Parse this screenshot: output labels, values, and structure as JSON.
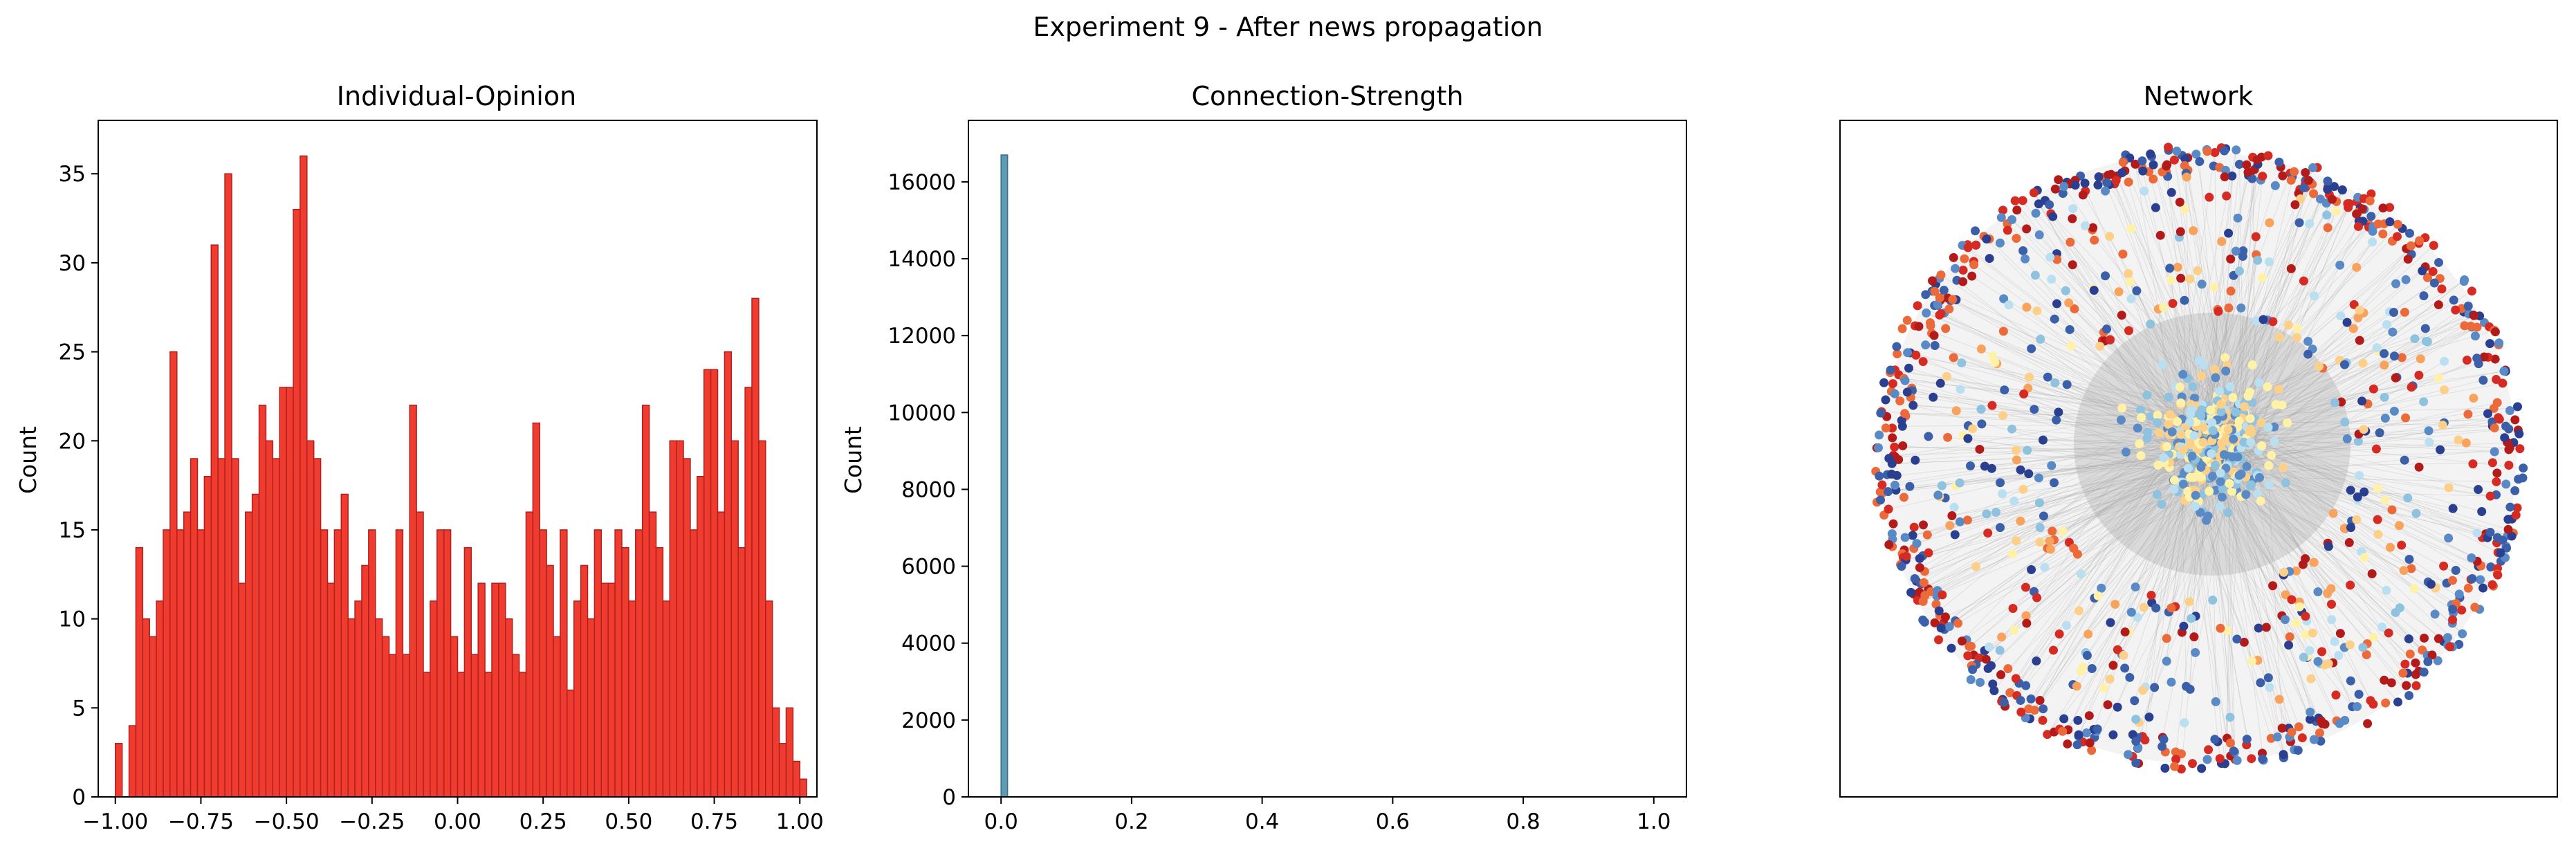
{
  "figure": {
    "suptitle": "Experiment 9 - After news propagation"
  },
  "chart_data": [
    {
      "type": "bar",
      "title": "Individual-Opinion",
      "xlabel": "",
      "ylabel": "Count",
      "xlim": [
        -1.05,
        1.05
      ],
      "ylim": [
        0,
        38
      ],
      "xticks": [
        -1.0,
        -0.75,
        -0.5,
        -0.25,
        0.0,
        0.25,
        0.5,
        0.75,
        1.0
      ],
      "xtick_labels": [
        "−1.00",
        "−0.75",
        "−0.50",
        "−0.25",
        "0.00",
        "0.25",
        "0.50",
        "0.75",
        "1.00"
      ],
      "yticks": [
        0,
        5,
        10,
        15,
        20,
        25,
        30,
        35
      ],
      "ytick_labels": [
        "0",
        "5",
        "10",
        "15",
        "20",
        "25",
        "30",
        "35"
      ],
      "bin_start": -1.0,
      "bin_width": 0.02,
      "values": [
        3,
        0,
        4,
        14,
        10,
        9,
        11,
        15,
        25,
        15,
        16,
        19,
        15,
        18,
        31,
        19,
        35,
        19,
        12,
        16,
        17,
        22,
        20,
        19,
        23,
        23,
        33,
        36,
        20,
        19,
        15,
        12,
        15,
        17,
        10,
        11,
        13,
        15,
        10,
        9,
        8,
        15,
        8,
        22,
        16,
        7,
        11,
        15,
        15,
        9,
        7,
        14,
        8,
        12,
        7,
        12,
        12,
        10,
        8,
        7,
        16,
        21,
        15,
        13,
        9,
        15,
        6,
        11,
        13,
        10,
        15,
        12,
        12,
        15,
        14,
        11,
        15,
        22,
        16,
        14,
        11,
        20,
        20,
        19,
        15,
        18,
        24,
        24,
        16,
        25,
        20,
        14,
        23,
        28,
        20,
        11,
        5,
        3,
        5,
        2,
        1
      ],
      "bar_color": "#f03c2f",
      "edge_color": "#b02020"
    },
    {
      "type": "bar",
      "title": "Connection-Strength",
      "xlabel": "",
      "ylabel": "Count",
      "xlim": [
        -0.05,
        1.05
      ],
      "ylim": [
        0,
        17600
      ],
      "xticks": [
        0.0,
        0.2,
        0.4,
        0.6,
        0.8,
        1.0
      ],
      "xtick_labels": [
        "0.0",
        "0.2",
        "0.4",
        "0.6",
        "0.8",
        "1.0"
      ],
      "yticks": [
        0,
        2000,
        4000,
        6000,
        8000,
        10000,
        12000,
        14000,
        16000
      ],
      "ytick_labels": [
        "0",
        "2000",
        "4000",
        "6000",
        "8000",
        "10000",
        "12000",
        "14000",
        "16000"
      ],
      "bin_start": 0.0,
      "bin_width": 0.01,
      "values": [
        16700
      ],
      "bar_color": "#5b9bb5",
      "edge_color": "#3d6f85"
    },
    {
      "type": "scatter",
      "title": "Network",
      "xlabel": "",
      "ylabel": "",
      "grid": false,
      "node_colors": [
        "#2a3f8f",
        "#3b5fa8",
        "#5a8ac6",
        "#8ec2de",
        "#b9dff0",
        "#fff2a8",
        "#fdd089",
        "#f8a25c",
        "#ec6a3a",
        "#d52b22",
        "#b31b1b"
      ],
      "edge_color": "#9a9a9a"
    }
  ]
}
